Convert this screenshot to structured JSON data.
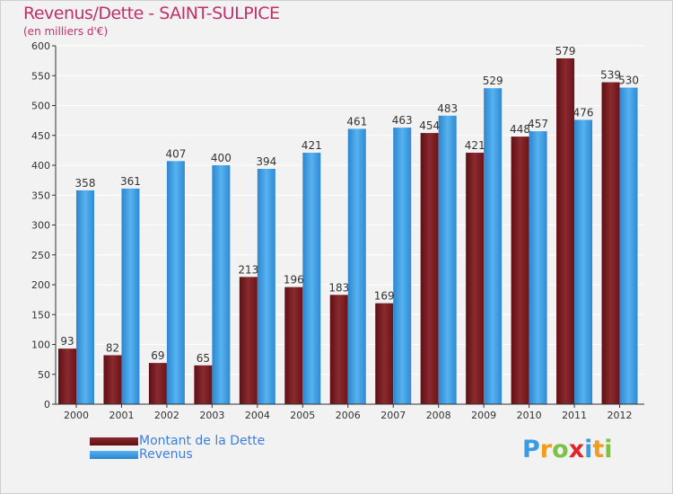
{
  "header": {
    "title": "Revenus/Dette - SAINT-SULPICE",
    "subtitle": "(en milliers d'€)"
  },
  "colors": {
    "debt": "#7a1c22",
    "revenue": "#3a9be0",
    "title": "#c0306a",
    "grid": "#ffffff",
    "background": "#f2f2f2"
  },
  "chart_data": {
    "type": "bar",
    "title": "Revenus/Dette - SAINT-SULPICE",
    "ylabel": "(en milliers d'€)",
    "categories": [
      "2000",
      "2001",
      "2002",
      "2003",
      "2004",
      "2005",
      "2006",
      "2007",
      "2008",
      "2009",
      "2010",
      "2011",
      "2012"
    ],
    "series": [
      {
        "name": "Montant de la Dette",
        "values": [
          93,
          82,
          69,
          65,
          213,
          196,
          183,
          169,
          454,
          421,
          448,
          579,
          539
        ]
      },
      {
        "name": "Revenus",
        "values": [
          358,
          361,
          407,
          400,
          394,
          421,
          461,
          463,
          483,
          529,
          457,
          476,
          530
        ]
      }
    ],
    "ylim": [
      0,
      600
    ],
    "yticks": [
      0,
      50,
      100,
      150,
      200,
      250,
      300,
      350,
      400,
      450,
      500,
      550,
      600
    ],
    "grid": true,
    "legend_position": "bottom-left"
  },
  "legend": {
    "debt_label": "Montant de la Dette",
    "revenue_label": "Revenus"
  },
  "logo": {
    "letters": [
      "P",
      "r",
      "o",
      "x",
      "i",
      "t",
      "i"
    ],
    "colors": [
      "#3a9be0",
      "#f29b1e",
      "#7cc242",
      "#e0242c",
      "#3a9be0",
      "#f29b1e",
      "#7cc242"
    ]
  }
}
